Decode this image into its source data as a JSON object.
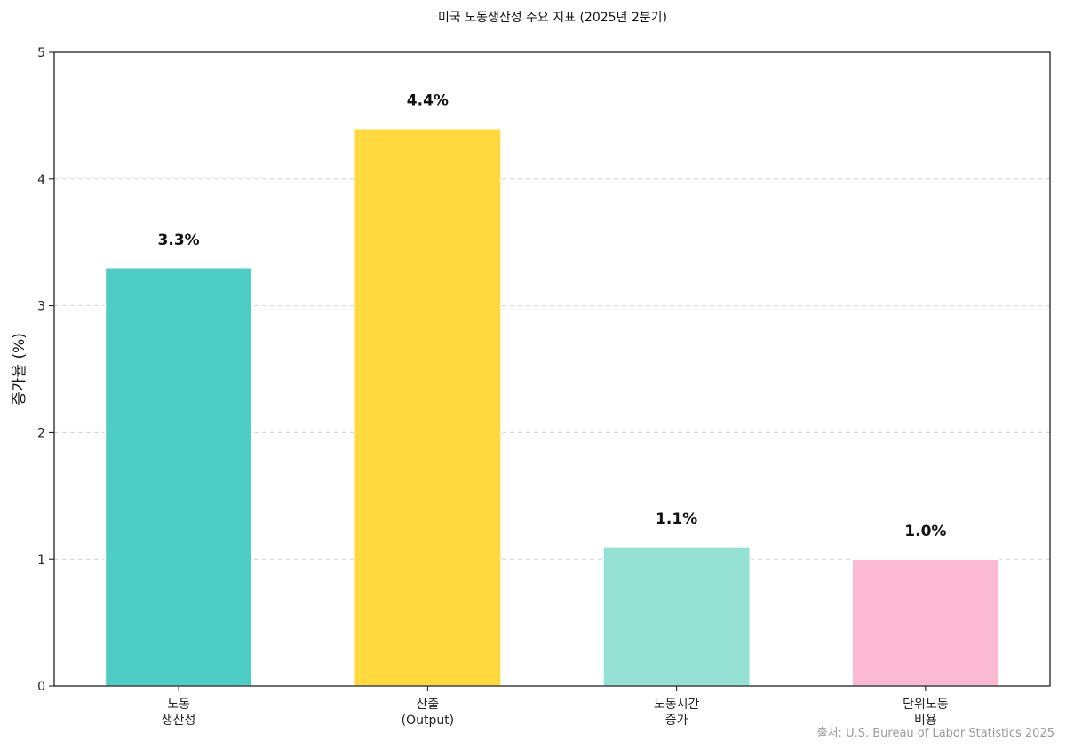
{
  "chart_data": {
    "type": "bar",
    "title": "미국 노동생산성 주요 지표 (2025년 2분기)",
    "xlabel": "",
    "ylabel": "증가율 (%)",
    "ylim": [
      0,
      5
    ],
    "yticks": [
      0,
      1,
      2,
      3,
      4,
      5
    ],
    "grid": true,
    "categories": [
      [
        "노동",
        "생산성"
      ],
      [
        "산출",
        "(Output)"
      ],
      [
        "노동시간",
        "증가"
      ],
      [
        "단위노동",
        "비용"
      ]
    ],
    "values": [
      3.3,
      4.4,
      1.1,
      1.0
    ],
    "data_labels": [
      "3.3%",
      "4.4%",
      "1.1%",
      "1.0%"
    ],
    "colors": [
      "#4ecdc4",
      "#ffd93d",
      "#95e1d3",
      "#fcb9d2"
    ]
  },
  "source_note": "출처: U.S. Bureau of Labor Statistics 2025"
}
